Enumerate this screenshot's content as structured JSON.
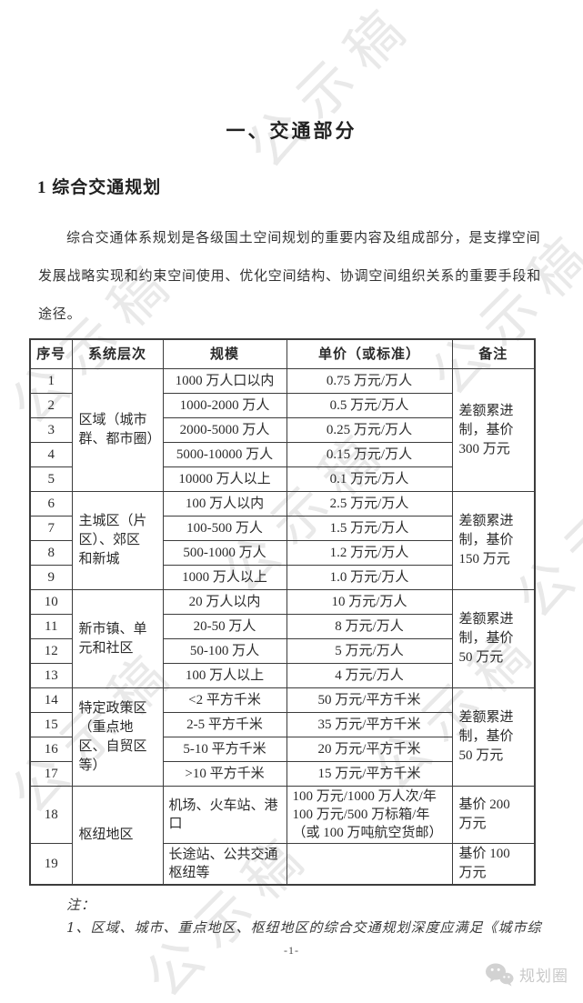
{
  "page": {
    "title": "一、交通部分",
    "section_heading": "1 综合交通规划",
    "paragraph": "综合交通体系规划是各级国土空间规划的重要内容及组成部分，是支撑空间\n发展战略实现和约束空间使用、优化空间结构、协调空间组织关系的重要手段和\n途径。",
    "watermark_text": "公示稿",
    "page_number": "-1-",
    "logo_text": "规划圈"
  },
  "table": {
    "headers": [
      "序号",
      "系统层次",
      "规模",
      "单价（或标准）",
      "备注"
    ],
    "groups": [
      {
        "level": "区域（城市\n群、都市圈）",
        "remark": "差额累进\n制，基价\n300 万元",
        "rows": [
          {
            "no": "1",
            "scale": "1000 万人口以内",
            "price": "0.75 万元/万人"
          },
          {
            "no": "2",
            "scale": "1000-2000 万人",
            "price": "0.5 万元/万人"
          },
          {
            "no": "3",
            "scale": "2000-5000 万人",
            "price": "0.25 万元/万人"
          },
          {
            "no": "4",
            "scale": "5000-10000 万人",
            "price": "0.15 万元/万人"
          },
          {
            "no": "5",
            "scale": "10000 万人以上",
            "price": "0.1 万元/万人"
          }
        ]
      },
      {
        "level": "主城区（片\n区）、郊区\n和新城",
        "remark": "差额累进\n制，基价\n150 万元",
        "rows": [
          {
            "no": "6",
            "scale": "100 万人以内",
            "price": "2.5 万元/万人"
          },
          {
            "no": "7",
            "scale": "100-500 万人",
            "price": "1.5 万元/万人"
          },
          {
            "no": "8",
            "scale": "500-1000 万人",
            "price": "1.2 万元/万人"
          },
          {
            "no": "9",
            "scale": "1000 万人以上",
            "price": "1.0 万元/万人"
          }
        ]
      },
      {
        "level": "新市镇、单\n元和社区",
        "remark": "差额累进\n制，基价\n50 万元",
        "rows": [
          {
            "no": "10",
            "scale": "20 万人以内",
            "price": "10 万元/万人"
          },
          {
            "no": "11",
            "scale": "20-50 万人",
            "price": "8 万元/万人"
          },
          {
            "no": "12",
            "scale": "50-100 万人",
            "price": "5 万元/万人"
          },
          {
            "no": "13",
            "scale": "100 万人以上",
            "price": "4 万元/万人"
          }
        ]
      },
      {
        "level": "特定政策区\n（重点地\n区、自贸区\n等）",
        "remark": "差额累进\n制，基价\n50 万元",
        "rows": [
          {
            "no": "14",
            "scale": "<2 平方千米",
            "price": "50 万元/平方千米"
          },
          {
            "no": "15",
            "scale": "2-5 平方千米",
            "price": "35 万元/平方千米"
          },
          {
            "no": "16",
            "scale": "5-10 平方千米",
            "price": "20 万元/平方千米"
          },
          {
            "no": "17",
            "scale": ">10 平方千米",
            "price": "15 万元/平方千米"
          }
        ]
      },
      {
        "level": "枢纽地区",
        "remark": null,
        "rows": [
          {
            "no": "18",
            "scale": "机场、火车站、港\n口",
            "price": "100 万元/1000 万人次/年\n100 万元/500 万标箱/年\n（或 100 万吨航空货邮）",
            "remark": "基价 200\n万元",
            "left": true
          },
          {
            "no": "19",
            "scale": "长途站、公共交通\n枢纽等",
            "price": "",
            "remark": "基价 100\n万元",
            "left": true
          }
        ]
      }
    ]
  },
  "notes": {
    "label": "注：",
    "items": [
      "1、区域、城市、重点地区、枢纽地区的综合交通规划深度应满足《城市综"
    ]
  },
  "colors": {
    "text": "#2e2e2e",
    "table_border": "#3c3c3c",
    "watermark": "#e9e9e9",
    "brand_gray": "#c9c9c9"
  }
}
